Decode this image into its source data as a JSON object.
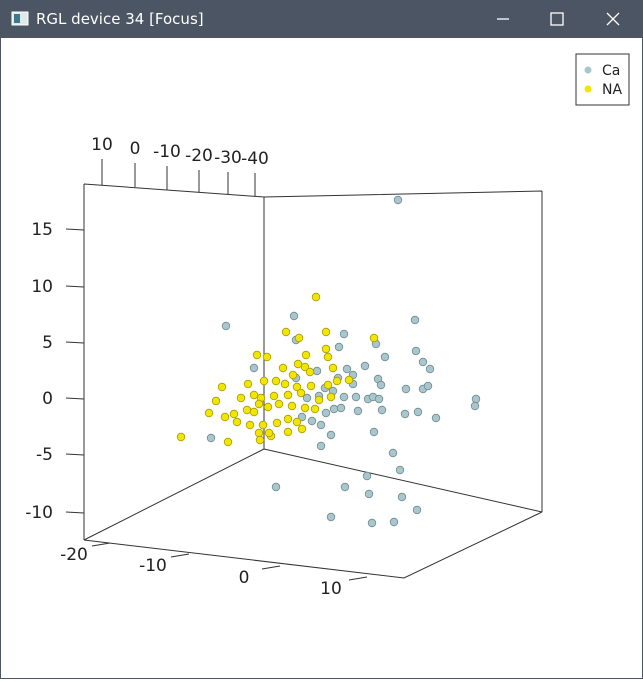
{
  "window": {
    "title": "RGL device 34 [Focus]"
  },
  "legend": {
    "items": [
      "Ca",
      "NA"
    ]
  },
  "axes": {
    "vertical_ticks": [
      "15",
      "10",
      "5",
      "0",
      "-5",
      "-10"
    ],
    "top_ticks": [
      "10",
      "0",
      "-10",
      "-20",
      "-30",
      "-40"
    ],
    "bottom_ticks": [
      "-20",
      "-10",
      "0",
      "10"
    ]
  }
}
